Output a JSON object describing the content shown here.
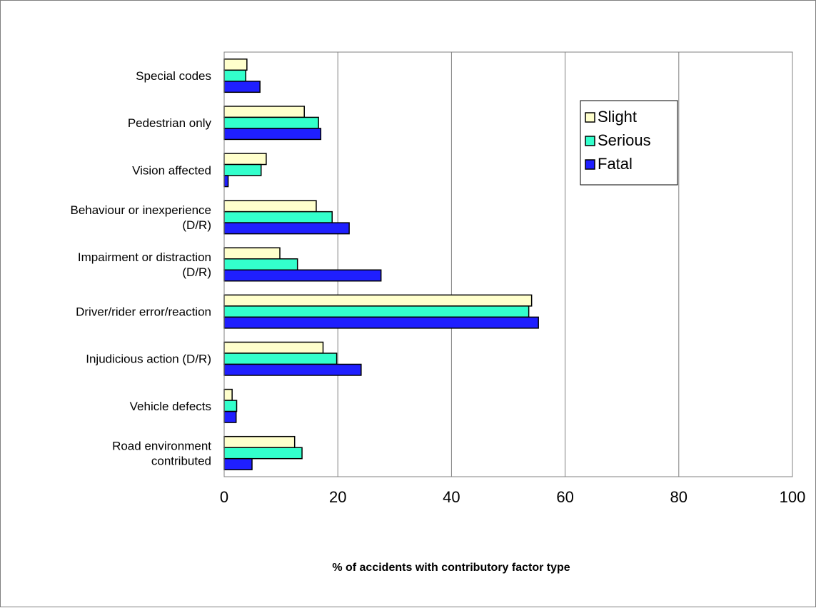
{
  "chart_data": {
    "type": "bar",
    "orientation": "horizontal",
    "title": "",
    "xlabel": "% of accidents with contributory factor type",
    "ylabel": "",
    "xlim": [
      0,
      100
    ],
    "xticks": [
      "0",
      "20",
      "40",
      "60",
      "80",
      "100"
    ],
    "grid": "vertical",
    "legend_position": "top-right",
    "categories": [
      "Special codes",
      "Pedestrian only",
      "Vision affected",
      "Behaviour or inexperience (D/R)",
      "Impairment or distraction (D/R)",
      "Driver/rider error/reaction",
      "Injudicious action (D/R)",
      "Vehicle defects",
      "Road environment contributed"
    ],
    "category_lines": [
      [
        "Special codes"
      ],
      [
        "Pedestrian only"
      ],
      [
        "Vision affected"
      ],
      [
        "Behaviour or inexperience",
        "(D/R)"
      ],
      [
        "Impairment or distraction",
        "(D/R)"
      ],
      [
        "Driver/rider error/reaction"
      ],
      [
        "Injudicious action (D/R)"
      ],
      [
        "Vehicle defects"
      ],
      [
        "Road environment",
        "contributed"
      ]
    ],
    "series": [
      {
        "name": "Slight",
        "color": "#ffffcc",
        "values": [
          4.0,
          14.1,
          7.4,
          16.2,
          9.8,
          54.1,
          17.4,
          1.4,
          12.4
        ]
      },
      {
        "name": "Serious",
        "color": "#33ffcc",
        "values": [
          3.8,
          16.6,
          6.5,
          19.0,
          12.9,
          53.6,
          19.8,
          2.2,
          13.7
        ]
      },
      {
        "name": "Fatal",
        "color": "#1f1fff",
        "values": [
          6.3,
          17.0,
          0.7,
          22.0,
          27.6,
          55.3,
          24.1,
          2.1,
          4.9
        ]
      }
    ]
  }
}
